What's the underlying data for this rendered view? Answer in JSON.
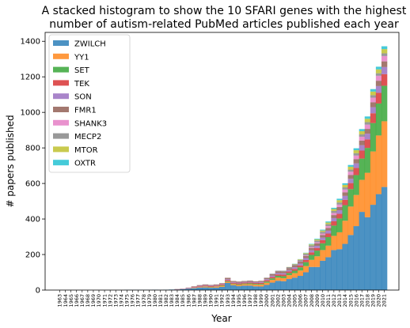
{
  "chart_data": {
    "type": "bar",
    "stacked": true,
    "title": [
      "A stacked histogram to show the 10 SFARI genes with the highest",
      "number of autism-related PubMed articles published each year"
    ],
    "xlabel": "Year",
    "ylabel": "# papers published",
    "ylim": [
      0,
      1450
    ],
    "yticks": [
      0,
      200,
      400,
      600,
      800,
      1000,
      1200,
      1400
    ],
    "legend_position": "top-left",
    "categories": [
      "1963",
      "1964",
      "1965",
      "1966",
      "1967",
      "1968",
      "1969",
      "1970",
      "1971",
      "1972",
      "1973",
      "1974",
      "1975",
      "1976",
      "1977",
      "1978",
      "1979",
      "1980",
      "1981",
      "1982",
      "1983",
      "1984",
      "1985",
      "1986",
      "1987",
      "1988",
      "1989",
      "1990",
      "1991",
      "1992",
      "1993",
      "1994",
      "1995",
      "1996",
      "1997",
      "1998",
      "1999",
      "2000",
      "2001",
      "2002",
      "2003",
      "2004",
      "2005",
      "2006",
      "2007",
      "2008",
      "2009",
      "2010",
      "2011",
      "2012",
      "2013",
      "2014",
      "2015",
      "2016",
      "2017",
      "2018",
      "2019",
      "2020",
      "2021"
    ],
    "series": [
      {
        "name": "ZWILCH",
        "color": "#1f77b4",
        "values": [
          0,
          0,
          0,
          0,
          0,
          0,
          0,
          0,
          0,
          0,
          0,
          0,
          1,
          1,
          1,
          1,
          1,
          2,
          1,
          2,
          3,
          3,
          5,
          8,
          10,
          14,
          15,
          13,
          14,
          18,
          40,
          27,
          22,
          25,
          25,
          21,
          20,
          29,
          42,
          52,
          50,
          62,
          70,
          80,
          100,
          130,
          130,
          165,
          185,
          225,
          230,
          260,
          310,
          360,
          440,
          410,
          480,
          540,
          580
        ]
      },
      {
        "name": "YY1",
        "color": "#ff7f0e",
        "values": [
          0,
          0,
          0,
          0,
          0,
          0,
          0,
          0,
          0,
          0,
          0,
          0,
          0,
          0,
          0,
          0,
          0,
          0,
          0,
          0,
          0,
          0,
          0,
          0,
          2,
          2,
          4,
          3,
          5,
          6,
          6,
          6,
          7,
          8,
          8,
          9,
          10,
          12,
          15,
          18,
          17,
          22,
          25,
          30,
          35,
          40,
          60,
          60,
          65,
          80,
          95,
          130,
          160,
          175,
          180,
          250,
          300,
          330,
          370
        ]
      },
      {
        "name": "SET",
        "color": "#2ca02c",
        "values": [
          0,
          0,
          0,
          0,
          0,
          0,
          0,
          0,
          0,
          0,
          0,
          0,
          0,
          0,
          0,
          0,
          0,
          0,
          0,
          0,
          0,
          0,
          0,
          0,
          1,
          1,
          2,
          2,
          2,
          3,
          4,
          3,
          4,
          4,
          5,
          5,
          5,
          7,
          9,
          10,
          11,
          12,
          14,
          18,
          22,
          28,
          32,
          38,
          48,
          58,
          78,
          88,
          98,
          112,
          120,
          140,
          160,
          180,
          200
        ]
      },
      {
        "name": "TEK",
        "color": "#d62728",
        "values": [
          0,
          0,
          0,
          0,
          0,
          0,
          0,
          0,
          0,
          0,
          0,
          0,
          0,
          0,
          0,
          0,
          0,
          0,
          0,
          0,
          0,
          1,
          1,
          2,
          3,
          4,
          4,
          4,
          4,
          5,
          6,
          5,
          5,
          5,
          5,
          5,
          6,
          7,
          8,
          8,
          9,
          9,
          10,
          11,
          12,
          14,
          15,
          18,
          20,
          24,
          26,
          30,
          34,
          40,
          45,
          48,
          55,
          60,
          65
        ]
      },
      {
        "name": "SON",
        "color": "#9467bd",
        "values": [
          0,
          0,
          0,
          0,
          0,
          0,
          0,
          0,
          0,
          0,
          0,
          0,
          0,
          0,
          0,
          0,
          0,
          0,
          0,
          0,
          0,
          1,
          1,
          2,
          2,
          3,
          3,
          3,
          3,
          3,
          5,
          4,
          4,
          4,
          4,
          4,
          5,
          6,
          7,
          8,
          8,
          8,
          9,
          10,
          11,
          12,
          12,
          14,
          16,
          18,
          20,
          22,
          24,
          26,
          30,
          32,
          34,
          38,
          40
        ]
      },
      {
        "name": "FMR1",
        "color": "#8c564b",
        "values": [
          0,
          0,
          0,
          0,
          0,
          0,
          0,
          0,
          0,
          0,
          0,
          0,
          0,
          0,
          0,
          0,
          0,
          0,
          0,
          0,
          0,
          1,
          1,
          2,
          3,
          4,
          4,
          4,
          4,
          4,
          8,
          6,
          6,
          5,
          6,
          5,
          6,
          7,
          8,
          9,
          9,
          10,
          10,
          11,
          12,
          13,
          14,
          15,
          16,
          17,
          18,
          20,
          22,
          24,
          26,
          27,
          28,
          30,
          32
        ]
      },
      {
        "name": "SHANK3",
        "color": "#e377c2",
        "values": [
          0,
          0,
          0,
          0,
          0,
          0,
          0,
          0,
          0,
          0,
          0,
          0,
          0,
          0,
          0,
          0,
          0,
          0,
          0,
          0,
          0,
          0,
          0,
          0,
          0,
          0,
          0,
          0,
          0,
          0,
          0,
          0,
          0,
          0,
          0,
          0,
          0,
          0,
          0,
          0,
          0,
          0,
          0,
          2,
          3,
          5,
          6,
          8,
          10,
          12,
          14,
          16,
          18,
          20,
          22,
          24,
          26,
          28,
          30
        ]
      },
      {
        "name": "MECP2",
        "color": "#7f7f7f",
        "values": [
          0,
          0,
          0,
          0,
          0,
          0,
          0,
          0,
          0,
          0,
          0,
          0,
          0,
          0,
          0,
          0,
          0,
          0,
          0,
          0,
          0,
          0,
          0,
          0,
          0,
          0,
          0,
          0,
          0,
          0,
          0,
          0,
          0,
          0,
          0,
          0,
          0,
          2,
          3,
          4,
          5,
          6,
          7,
          8,
          9,
          10,
          10,
          10,
          11,
          11,
          12,
          12,
          12,
          13,
          13,
          14,
          14,
          14,
          15
        ]
      },
      {
        "name": "MTOR",
        "color": "#bcbd22",
        "values": [
          0,
          0,
          0,
          0,
          0,
          0,
          0,
          0,
          0,
          0,
          0,
          0,
          0,
          0,
          0,
          0,
          0,
          0,
          0,
          0,
          0,
          0,
          0,
          0,
          0,
          0,
          0,
          0,
          0,
          0,
          0,
          0,
          0,
          0,
          0,
          0,
          0,
          0,
          0,
          0,
          0,
          1,
          2,
          3,
          4,
          5,
          6,
          7,
          9,
          11,
          13,
          14,
          16,
          17,
          18,
          19,
          20,
          22,
          24
        ]
      },
      {
        "name": "OXTR",
        "color": "#17becf",
        "values": [
          0,
          0,
          0,
          0,
          0,
          0,
          0,
          0,
          0,
          0,
          0,
          0,
          0,
          0,
          0,
          0,
          0,
          0,
          0,
          0,
          0,
          0,
          0,
          0,
          0,
          0,
          0,
          0,
          0,
          0,
          0,
          0,
          0,
          0,
          0,
          0,
          0,
          0,
          0,
          0,
          0,
          0,
          1,
          1,
          2,
          3,
          4,
          5,
          6,
          7,
          8,
          9,
          10,
          11,
          12,
          13,
          14,
          15,
          16
        ]
      }
    ]
  }
}
